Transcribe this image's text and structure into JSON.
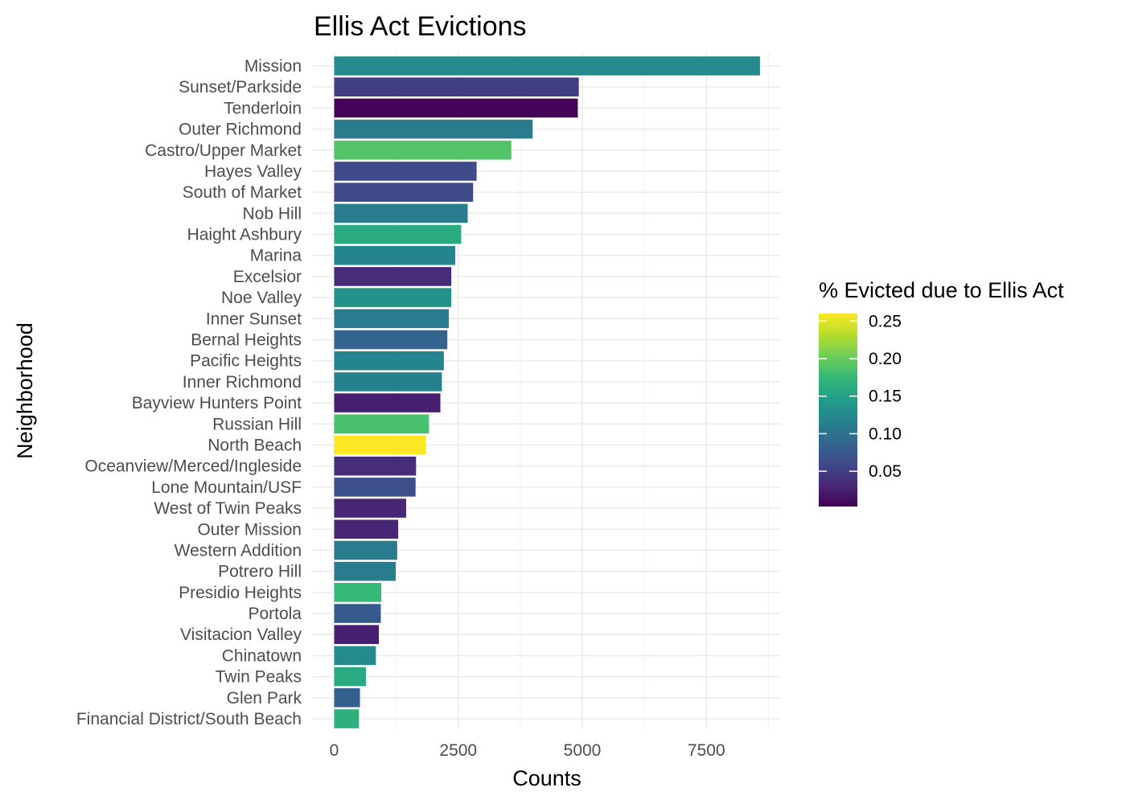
{
  "chart_data": {
    "type": "bar",
    "orientation": "horizontal",
    "title": "Ellis Act Evictions",
    "xlabel": "Counts",
    "ylabel": "Neighborhood",
    "xlim": [
      0,
      8700
    ],
    "xticks": [
      0,
      2500,
      5000,
      7500
    ],
    "xtick_labels": [
      "0",
      "2500",
      "5000",
      "7500"
    ],
    "grid": true,
    "categories": [
      "Mission",
      "Sunset/Parkside",
      "Tenderloin",
      "Outer Richmond",
      "Castro/Upper Market",
      "Hayes Valley",
      "South of Market",
      "Nob Hill",
      "Haight Ashbury",
      "Marina",
      "Excelsior",
      "Noe Valley",
      "Inner Sunset",
      "Bernal Heights",
      "Pacific Heights",
      "Inner Richmond",
      "Bayview Hunters Point",
      "Russian Hill",
      "North Beach",
      "Oceanview/Merced/Ingleside",
      "Lone Mountain/USF",
      "West of Twin Peaks",
      "Outer Mission",
      "Western Addition",
      "Potrero Hill",
      "Presidio Heights",
      "Portola",
      "Visitacion Valley",
      "Chinatown",
      "Twin Peaks",
      "Glen Park",
      "Financial District/South Beach"
    ],
    "values": [
      8580,
      4930,
      4910,
      4000,
      3570,
      2870,
      2800,
      2690,
      2560,
      2440,
      2360,
      2360,
      2310,
      2280,
      2210,
      2170,
      2140,
      1910,
      1850,
      1650,
      1640,
      1450,
      1290,
      1270,
      1240,
      950,
      940,
      900,
      840,
      640,
      520,
      500
    ],
    "color_values": [
      0.125,
      0.05,
      0.005,
      0.11,
      0.19,
      0.06,
      0.06,
      0.11,
      0.16,
      0.12,
      0.035,
      0.135,
      0.11,
      0.085,
      0.12,
      0.115,
      0.025,
      0.185,
      0.26,
      0.035,
      0.065,
      0.03,
      0.03,
      0.11,
      0.11,
      0.175,
      0.075,
      0.025,
      0.125,
      0.16,
      0.08,
      0.165
    ],
    "legend": {
      "title": "% Evicted due to Ellis Act",
      "position": "right",
      "range": [
        0.003,
        0.26
      ],
      "ticks": [
        0.05,
        0.1,
        0.15,
        0.2,
        0.25
      ],
      "tick_labels": [
        "0.05",
        "0.10",
        "0.15",
        "0.20",
        "0.25"
      ],
      "palette": "viridis",
      "colors": [
        "#440154",
        "#482878",
        "#3E4A89",
        "#31688E",
        "#26828E",
        "#1F9E89",
        "#35B779",
        "#6DCD59",
        "#B4DE2C",
        "#FDE725"
      ]
    }
  }
}
